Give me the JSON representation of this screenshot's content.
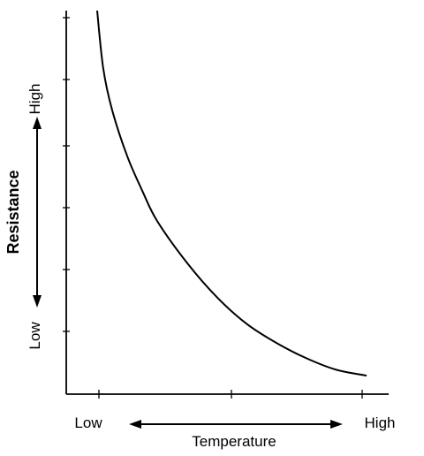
{
  "chart_data": {
    "type": "line",
    "title": "",
    "xlabel": "Temperature",
    "ylabel": "Resistance",
    "x_low_label": "Low",
    "x_high_label": "High",
    "y_low_label": "Low",
    "y_high_label": "High",
    "xlim": [
      0,
      1
    ],
    "ylim": [
      0,
      1
    ],
    "grid": false,
    "series": [
      {
        "x": [
          0.1,
          0.12,
          0.15,
          0.2,
          0.25,
          0.3,
          0.4,
          0.5,
          0.6,
          0.7,
          0.8,
          0.9,
          1.0
        ],
        "y": [
          1.0,
          0.85,
          0.74,
          0.62,
          0.53,
          0.45,
          0.34,
          0.25,
          0.18,
          0.13,
          0.09,
          0.06,
          0.045
        ]
      }
    ],
    "line_color": "#000000"
  }
}
